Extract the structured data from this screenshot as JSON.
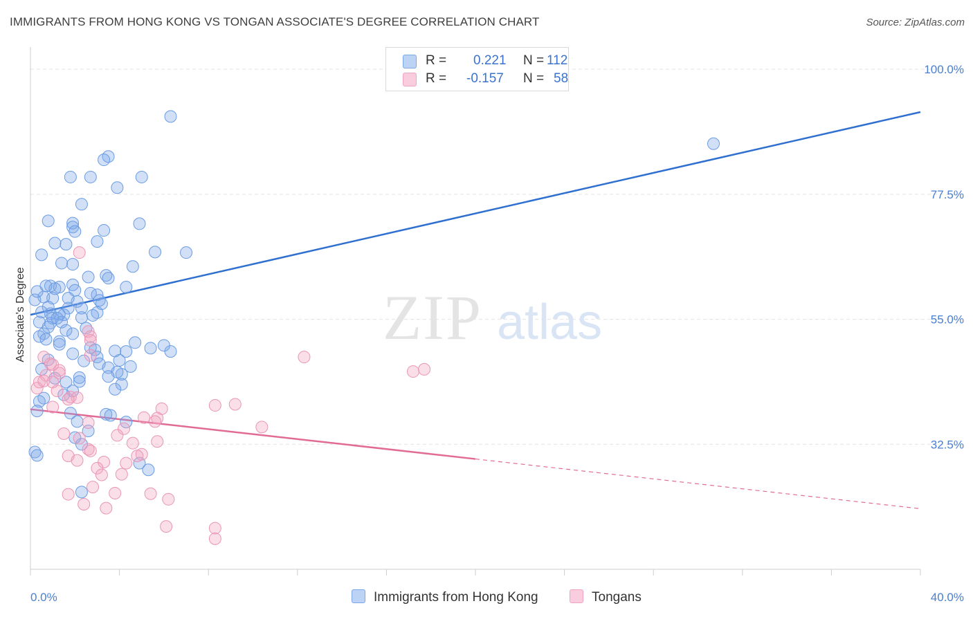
{
  "title": "IMMIGRANTS FROM HONG KONG VS TONGAN ASSOCIATE'S DEGREE CORRELATION CHART",
  "source": "Source: ZipAtlas.com",
  "watermark": {
    "zip": "ZIP",
    "atlas": "atlas"
  },
  "legend": {
    "rows": [
      {
        "r_label": "R =",
        "r_value": "0.221",
        "n_label": "N =",
        "n_value": "112",
        "color": "#7ba7e8"
      },
      {
        "r_label": "R =",
        "r_value": "-0.157",
        "n_label": "N =",
        "n_value": "58",
        "color": "#f0a3c0"
      }
    ]
  },
  "chart_data": {
    "type": "scatter",
    "title": "IMMIGRANTS FROM HONG KONG VS TONGAN ASSOCIATE'S DEGREE CORRELATION CHART",
    "ylabel": "Associate's Degree",
    "xlabel": "",
    "xlim": [
      0,
      40
    ],
    "ylim": [
      10,
      104
    ],
    "x_tick_labels": [
      "0.0%",
      "40.0%"
    ],
    "y_ticks": [
      32.5,
      55.0,
      77.5,
      100.0
    ],
    "y_tick_labels": [
      "32.5%",
      "55.0%",
      "77.5%",
      "100.0%"
    ],
    "grid": true,
    "series": [
      {
        "name": "Immigrants from Hong Kong",
        "color": "#7ba7e8",
        "line_color": "#2e6fd0",
        "trend": {
          "x": [
            0,
            40
          ],
          "y": [
            55.8,
            92.3
          ],
          "dashed_from": null
        },
        "points": [
          [
            6.3,
            91.5
          ],
          [
            30.7,
            86.6
          ],
          [
            3.5,
            84.3
          ],
          [
            3.3,
            83.7
          ],
          [
            1.8,
            80.6
          ],
          [
            2.7,
            80.6
          ],
          [
            5.0,
            80.6
          ],
          [
            3.9,
            78.7
          ],
          [
            2.3,
            75.7
          ],
          [
            0.8,
            72.7
          ],
          [
            1.9,
            72.3
          ],
          [
            1.9,
            71.6
          ],
          [
            4.9,
            72.2
          ],
          [
            3.3,
            71.0
          ],
          [
            2.0,
            70.8
          ],
          [
            3.0,
            69.0
          ],
          [
            1.1,
            68.7
          ],
          [
            1.6,
            68.5
          ],
          [
            5.6,
            67.1
          ],
          [
            7.0,
            67.0
          ],
          [
            0.5,
            66.6
          ],
          [
            1.4,
            65.1
          ],
          [
            1.9,
            64.9
          ],
          [
            4.6,
            64.5
          ],
          [
            3.4,
            62.9
          ],
          [
            3.5,
            62.4
          ],
          [
            2.6,
            62.6
          ],
          [
            1.9,
            61.2
          ],
          [
            0.9,
            61.0
          ],
          [
            1.3,
            60.8
          ],
          [
            4.3,
            60.8
          ],
          [
            3.0,
            59.4
          ],
          [
            2.7,
            59.7
          ],
          [
            3.1,
            58.4
          ],
          [
            2.1,
            58.2
          ],
          [
            3.2,
            57.8
          ],
          [
            0.8,
            57.2
          ],
          [
            1.7,
            57.0
          ],
          [
            2.3,
            57.0
          ],
          [
            1.5,
            55.8
          ],
          [
            1.3,
            55.9
          ],
          [
            0.9,
            56.0
          ],
          [
            2.3,
            55.3
          ],
          [
            1.4,
            54.5
          ],
          [
            0.9,
            54.3
          ],
          [
            0.4,
            54.5
          ],
          [
            0.5,
            56.3
          ],
          [
            1.6,
            53.0
          ],
          [
            2.5,
            53.4
          ],
          [
            1.9,
            52.4
          ],
          [
            0.6,
            52.4
          ],
          [
            0.4,
            51.9
          ],
          [
            0.7,
            51.4
          ],
          [
            1.3,
            51.0
          ],
          [
            1.3,
            50.5
          ],
          [
            2.7,
            49.9
          ],
          [
            2.9,
            49.5
          ],
          [
            3.8,
            49.3
          ],
          [
            4.7,
            50.8
          ],
          [
            5.4,
            49.8
          ],
          [
            6.3,
            49.2
          ],
          [
            6.0,
            50.3
          ],
          [
            1.9,
            48.8
          ],
          [
            2.4,
            47.5
          ],
          [
            0.8,
            47.7
          ],
          [
            3.0,
            48.2
          ],
          [
            4.3,
            49.2
          ],
          [
            3.1,
            47.0
          ],
          [
            4.5,
            46.5
          ],
          [
            0.5,
            46.0
          ],
          [
            4.1,
            45.1
          ],
          [
            4.0,
            47.6
          ],
          [
            3.5,
            46.3
          ],
          [
            3.9,
            45.5
          ],
          [
            2.2,
            44.5
          ],
          [
            1.1,
            44.4
          ],
          [
            3.5,
            44.7
          ],
          [
            4.1,
            43.3
          ],
          [
            3.8,
            42.4
          ],
          [
            1.9,
            42.1
          ],
          [
            1.5,
            41.4
          ],
          [
            0.6,
            40.8
          ],
          [
            0.4,
            40.2
          ],
          [
            0.3,
            38.5
          ],
          [
            1.8,
            38.1
          ],
          [
            3.4,
            37.9
          ],
          [
            3.6,
            37.7
          ],
          [
            2.1,
            36.6
          ],
          [
            4.3,
            36.5
          ],
          [
            2.6,
            34.9
          ],
          [
            2.0,
            33.7
          ],
          [
            2.3,
            32.5
          ],
          [
            0.2,
            31.1
          ],
          [
            0.3,
            30.5
          ],
          [
            4.9,
            29.1
          ],
          [
            5.3,
            27.9
          ],
          [
            2.3,
            23.9
          ],
          [
            1.6,
            43.7
          ],
          [
            2.2,
            43.8
          ],
          [
            1.0,
            58.8
          ],
          [
            1.1,
            60.5
          ],
          [
            2.0,
            60.2
          ],
          [
            0.7,
            61.0
          ],
          [
            1.7,
            58.8
          ],
          [
            3.0,
            56.2
          ],
          [
            1.0,
            55.2
          ],
          [
            2.8,
            55.7
          ],
          [
            0.6,
            59.0
          ],
          [
            1.2,
            55.2
          ],
          [
            0.2,
            58.5
          ],
          [
            0.3,
            60.0
          ],
          [
            0.8,
            53.6
          ]
        ]
      },
      {
        "name": "Tongans",
        "color": "#f0a3c0",
        "line_color": "#e26b95",
        "trend": {
          "x": [
            0,
            40
          ],
          "y": [
            38.8,
            20.9
          ],
          "dashed_from": 20
        },
        "points": [
          [
            2.2,
            67.0
          ],
          [
            12.3,
            48.2
          ],
          [
            17.7,
            46.0
          ],
          [
            17.2,
            45.6
          ],
          [
            2.6,
            52.8
          ],
          [
            2.7,
            51.9
          ],
          [
            2.7,
            51.2
          ],
          [
            2.7,
            48.5
          ],
          [
            0.6,
            48.2
          ],
          [
            0.9,
            47.0
          ],
          [
            1.0,
            46.8
          ],
          [
            1.3,
            45.3
          ],
          [
            1.3,
            45.8
          ],
          [
            0.7,
            44.9
          ],
          [
            0.3,
            42.6
          ],
          [
            0.4,
            43.7
          ],
          [
            0.6,
            43.9
          ],
          [
            1.0,
            43.7
          ],
          [
            1.2,
            42.1
          ],
          [
            1.8,
            41.0
          ],
          [
            2.1,
            40.9
          ],
          [
            1.7,
            40.6
          ],
          [
            1.0,
            39.2
          ],
          [
            5.9,
            38.9
          ],
          [
            8.3,
            39.5
          ],
          [
            9.2,
            39.7
          ],
          [
            5.1,
            37.3
          ],
          [
            5.7,
            37.2
          ],
          [
            5.6,
            36.6
          ],
          [
            2.6,
            36.4
          ],
          [
            10.4,
            35.6
          ],
          [
            4.2,
            35.3
          ],
          [
            1.5,
            34.4
          ],
          [
            3.9,
            34.1
          ],
          [
            2.2,
            33.6
          ],
          [
            5.7,
            33.0
          ],
          [
            4.6,
            32.7
          ],
          [
            2.6,
            31.6
          ],
          [
            2.7,
            31.3
          ],
          [
            5.0,
            30.7
          ],
          [
            4.8,
            30.4
          ],
          [
            1.7,
            30.4
          ],
          [
            2.1,
            29.6
          ],
          [
            3.3,
            29.3
          ],
          [
            4.3,
            29.1
          ],
          [
            3.0,
            28.2
          ],
          [
            4.1,
            27.1
          ],
          [
            3.2,
            27.0
          ],
          [
            2.8,
            24.8
          ],
          [
            1.7,
            23.5
          ],
          [
            3.8,
            23.7
          ],
          [
            5.4,
            23.6
          ],
          [
            6.2,
            22.6
          ],
          [
            2.4,
            21.7
          ],
          [
            3.4,
            21.0
          ],
          [
            6.1,
            17.7
          ],
          [
            8.3,
            17.4
          ],
          [
            8.3,
            15.5
          ]
        ]
      }
    ]
  },
  "bottom_legend": {
    "items": [
      {
        "label": "Immigrants from Hong Kong",
        "color": "#7ba7e8"
      },
      {
        "label": "Tongans",
        "color": "#f0a3c0"
      }
    ]
  }
}
